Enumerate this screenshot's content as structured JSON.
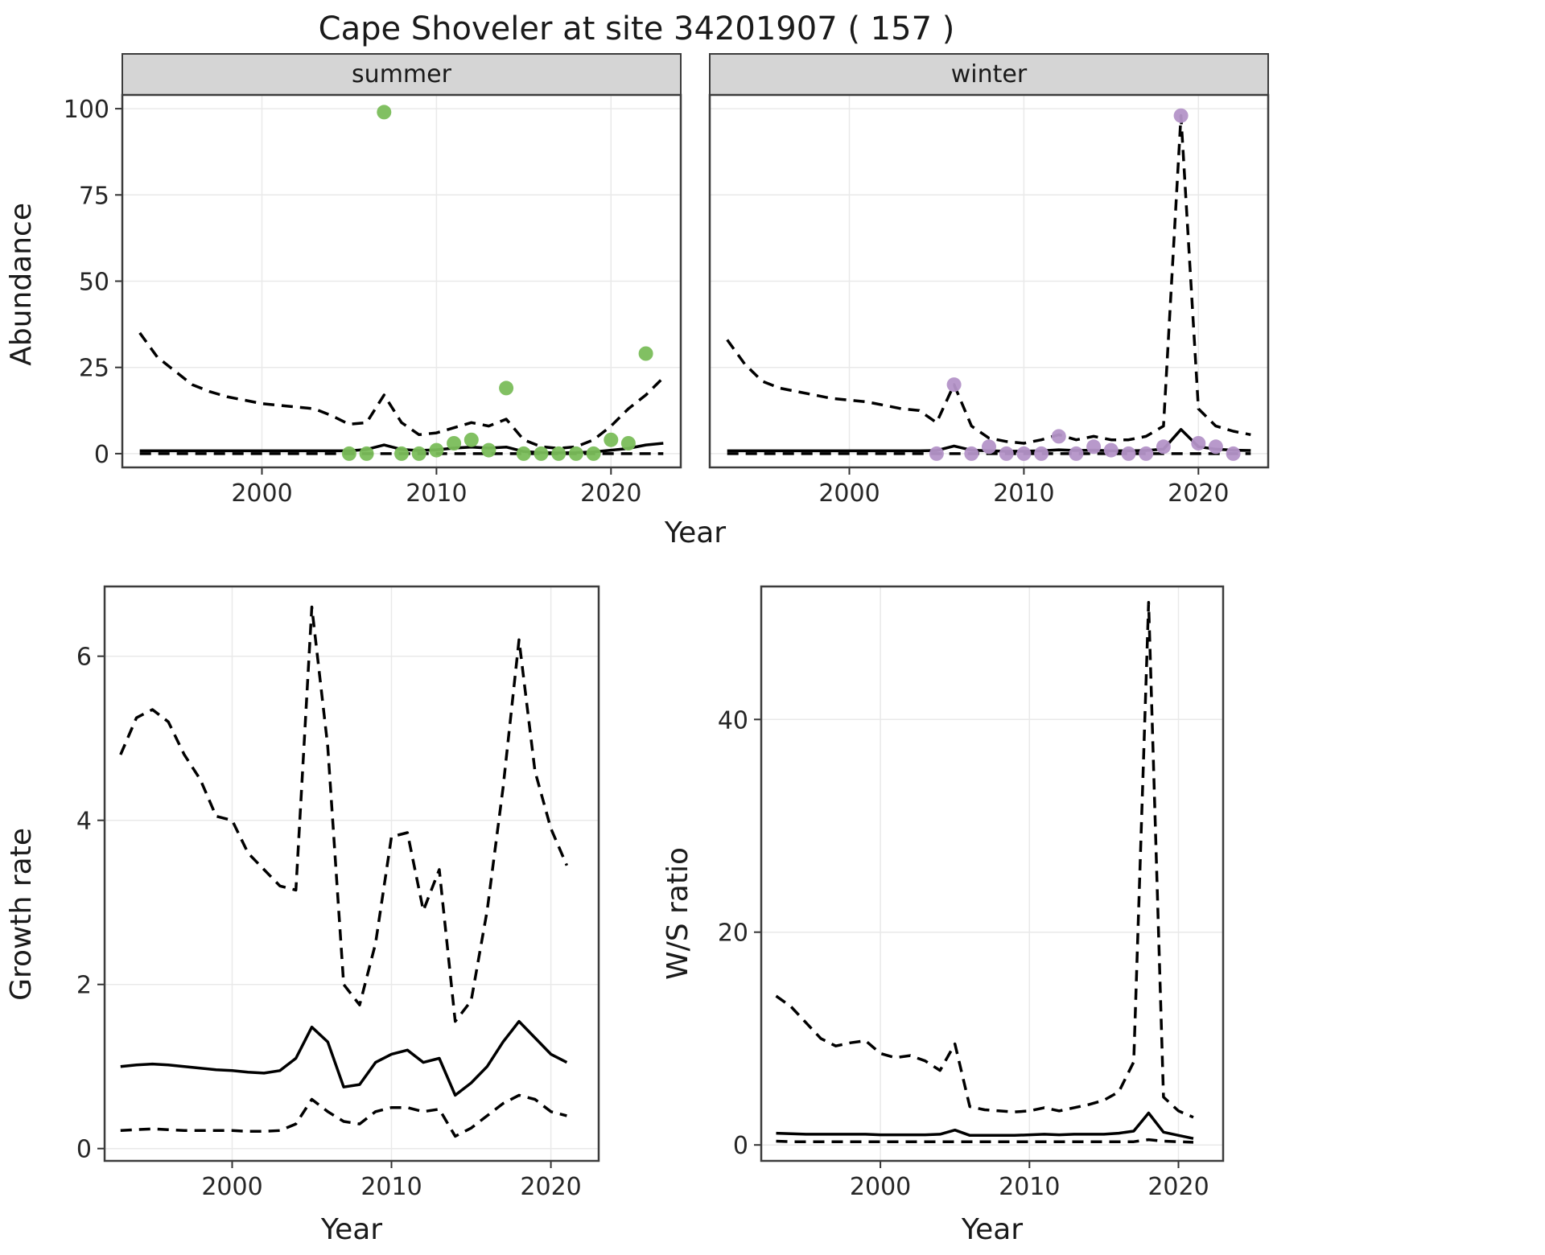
{
  "title": "Cape Shoveler at site 34201907 ( 157 )",
  "colors": {
    "summer_points": "#7abd5a",
    "winter_points": "#b494c8",
    "line": "#000000",
    "strip_bg": "#d5d5d5",
    "grid": "#e9e9e9",
    "panel_border": "#3c3c3c"
  },
  "chart_data": [
    {
      "id": "abundance_summer",
      "type": "line",
      "facet_label": "summer",
      "xlabel": "Year",
      "ylabel": "Abundance",
      "xlim": [
        1992,
        2024
      ],
      "ylim": [
        -4,
        104
      ],
      "xticks": [
        2000,
        2010,
        2020
      ],
      "yticks": [
        0,
        25,
        50,
        75,
        100
      ],
      "grid": true,
      "series": [
        {
          "name": "upper-ci",
          "style": "dashed",
          "color": "#000000",
          "x": [
            1993,
            1994,
            1995,
            1996,
            1997,
            1998,
            1999,
            2000,
            2001,
            2002,
            2003,
            2004,
            2005,
            2006,
            2007,
            2008,
            2009,
            2010,
            2011,
            2012,
            2013,
            2014,
            2015,
            2016,
            2017,
            2018,
            2019,
            2020,
            2021,
            2022,
            2023
          ],
          "y": [
            35,
            28,
            24,
            20,
            18,
            16.5,
            15.5,
            14.5,
            14,
            13.5,
            13,
            11,
            8.5,
            9,
            17,
            9,
            5.5,
            6,
            7.5,
            9,
            8,
            10,
            4,
            2,
            1.5,
            2,
            4,
            8,
            13,
            17,
            22
          ]
        },
        {
          "name": "median",
          "style": "solid",
          "color": "#000000",
          "x": [
            1993,
            1994,
            1995,
            1996,
            1997,
            1998,
            1999,
            2000,
            2001,
            2002,
            2003,
            2004,
            2005,
            2006,
            2007,
            2008,
            2009,
            2010,
            2011,
            2012,
            2013,
            2014,
            2015,
            2016,
            2017,
            2018,
            2019,
            2020,
            2021,
            2022,
            2023
          ],
          "y": [
            0.8,
            0.8,
            0.8,
            0.8,
            0.8,
            0.8,
            0.8,
            0.8,
            0.8,
            0.8,
            0.8,
            0.8,
            0.8,
            1.2,
            2.5,
            1.2,
            0.9,
            1.1,
            1.6,
            1.9,
            1.6,
            1.9,
            0.6,
            0.3,
            0.2,
            0.3,
            0.5,
            1.0,
            1.5,
            2.5,
            3.0
          ]
        },
        {
          "name": "lower-ci",
          "style": "dashed",
          "color": "#000000",
          "x": [
            1993,
            1994,
            1995,
            1996,
            1997,
            1998,
            1999,
            2000,
            2001,
            2002,
            2003,
            2004,
            2005,
            2006,
            2007,
            2008,
            2009,
            2010,
            2011,
            2012,
            2013,
            2014,
            2015,
            2016,
            2017,
            2018,
            2019,
            2020,
            2021,
            2022,
            2023
          ],
          "y": [
            0,
            0,
            0,
            0,
            0,
            0,
            0,
            0,
            0,
            0,
            0,
            0,
            0,
            0,
            0,
            0,
            0,
            0,
            0,
            0,
            0,
            0,
            0,
            0,
            0,
            0,
            0,
            0,
            0,
            0,
            0
          ]
        },
        {
          "name": "observed-counts",
          "style": "points",
          "color": "#7abd5a",
          "x": [
            2005,
            2006,
            2007,
            2008,
            2009,
            2010,
            2011,
            2012,
            2013,
            2014,
            2015,
            2016,
            2017,
            2018,
            2019,
            2020,
            2021,
            2022
          ],
          "y": [
            0,
            0,
            99,
            0,
            0,
            1,
            3,
            4,
            1,
            19,
            0,
            0,
            0,
            0,
            0,
            4,
            3,
            29
          ]
        }
      ]
    },
    {
      "id": "abundance_winter",
      "type": "line",
      "facet_label": "winter",
      "xlabel": "Year",
      "ylabel": "Abundance",
      "xlim": [
        1992,
        2024
      ],
      "ylim": [
        -4,
        104
      ],
      "xticks": [
        2000,
        2010,
        2020
      ],
      "yticks": [
        0,
        25,
        50,
        75,
        100
      ],
      "grid": true,
      "series": [
        {
          "name": "upper-ci",
          "style": "dashed",
          "color": "#000000",
          "x": [
            1993,
            1994,
            1995,
            1996,
            1997,
            1998,
            1999,
            2000,
            2001,
            2002,
            2003,
            2004,
            2005,
            2006,
            2007,
            2008,
            2009,
            2010,
            2011,
            2012,
            2013,
            2014,
            2015,
            2016,
            2017,
            2018,
            2019,
            2020,
            2021,
            2022,
            2023
          ],
          "y": [
            33,
            26,
            21,
            19,
            18,
            17,
            16,
            15.5,
            15,
            14,
            13,
            12.5,
            9,
            20,
            8,
            4.5,
            3.5,
            3,
            4,
            5.5,
            4,
            5,
            4,
            4,
            5,
            8,
            98,
            13,
            8,
            6.5,
            5.5
          ]
        },
        {
          "name": "median",
          "style": "solid",
          "color": "#000000",
          "x": [
            1993,
            1994,
            1995,
            1996,
            1997,
            1998,
            1999,
            2000,
            2001,
            2002,
            2003,
            2004,
            2005,
            2006,
            2007,
            2008,
            2009,
            2010,
            2011,
            2012,
            2013,
            2014,
            2015,
            2016,
            2017,
            2018,
            2019,
            2020,
            2021,
            2022,
            2023
          ],
          "y": [
            0.8,
            0.8,
            0.8,
            0.8,
            0.8,
            0.8,
            0.8,
            0.8,
            0.8,
            0.8,
            0.8,
            0.8,
            0.9,
            2.2,
            1.0,
            0.8,
            0.7,
            0.7,
            0.8,
            1.1,
            0.9,
            1.0,
            0.8,
            0.8,
            0.9,
            1.3,
            7,
            2,
            1.3,
            1.0,
            0.9
          ]
        },
        {
          "name": "lower-ci",
          "style": "dashed",
          "color": "#000000",
          "x": [
            1993,
            1994,
            1995,
            1996,
            1997,
            1998,
            1999,
            2000,
            2001,
            2002,
            2003,
            2004,
            2005,
            2006,
            2007,
            2008,
            2009,
            2010,
            2011,
            2012,
            2013,
            2014,
            2015,
            2016,
            2017,
            2018,
            2019,
            2020,
            2021,
            2022,
            2023
          ],
          "y": [
            0,
            0,
            0,
            0,
            0,
            0,
            0,
            0,
            0,
            0,
            0,
            0,
            0,
            0,
            0,
            0,
            0,
            0,
            0,
            0,
            0,
            0,
            0,
            0,
            0,
            0,
            0,
            0,
            0,
            0,
            0
          ]
        },
        {
          "name": "observed-counts",
          "style": "points",
          "color": "#b494c8",
          "x": [
            2005,
            2006,
            2007,
            2008,
            2009,
            2010,
            2011,
            2012,
            2013,
            2014,
            2015,
            2016,
            2017,
            2018,
            2019,
            2020,
            2021,
            2022
          ],
          "y": [
            0,
            20,
            0,
            2,
            0,
            0,
            0,
            5,
            0,
            2,
            1,
            0,
            0,
            2,
            98,
            3,
            2,
            0
          ]
        }
      ]
    },
    {
      "id": "growth_rate",
      "type": "line",
      "facet_label": "",
      "xlabel": "Year",
      "ylabel": "Growth rate",
      "xlim": [
        1992,
        2023
      ],
      "ylim": [
        -0.15,
        6.85
      ],
      "xticks": [
        2000,
        2010,
        2020
      ],
      "yticks": [
        0,
        2,
        4,
        6
      ],
      "grid": true,
      "series": [
        {
          "name": "upper-ci",
          "style": "dashed",
          "color": "#000000",
          "x": [
            1993,
            1994,
            1995,
            1996,
            1997,
            1998,
            1999,
            2000,
            2001,
            2002,
            2003,
            2004,
            2005,
            2006,
            2007,
            2008,
            2009,
            2010,
            2011,
            2012,
            2013,
            2014,
            2015,
            2016,
            2017,
            2018,
            2019,
            2020,
            2021
          ],
          "y": [
            4.8,
            5.25,
            5.35,
            5.2,
            4.8,
            4.5,
            4.05,
            4.0,
            3.6,
            3.4,
            3.2,
            3.15,
            6.6,
            4.9,
            2.0,
            1.75,
            2.5,
            3.8,
            3.85,
            2.9,
            3.4,
            1.55,
            1.8,
            2.9,
            4.4,
            6.2,
            4.6,
            3.9,
            3.45
          ]
        },
        {
          "name": "median",
          "style": "solid",
          "color": "#000000",
          "x": [
            1993,
            1994,
            1995,
            1996,
            1997,
            1998,
            1999,
            2000,
            2001,
            2002,
            2003,
            2004,
            2005,
            2006,
            2007,
            2008,
            2009,
            2010,
            2011,
            2012,
            2013,
            2014,
            2015,
            2016,
            2017,
            2018,
            2019,
            2020,
            2021
          ],
          "y": [
            1.0,
            1.02,
            1.03,
            1.02,
            1.0,
            0.98,
            0.96,
            0.95,
            0.93,
            0.92,
            0.95,
            1.1,
            1.48,
            1.3,
            0.75,
            0.78,
            1.05,
            1.15,
            1.2,
            1.05,
            1.1,
            0.65,
            0.8,
            1.0,
            1.3,
            1.55,
            1.35,
            1.15,
            1.05
          ]
        },
        {
          "name": "lower-ci",
          "style": "dashed",
          "color": "#000000",
          "x": [
            1993,
            1994,
            1995,
            1996,
            1997,
            1998,
            1999,
            2000,
            2001,
            2002,
            2003,
            2004,
            2005,
            2006,
            2007,
            2008,
            2009,
            2010,
            2011,
            2012,
            2013,
            2014,
            2015,
            2016,
            2017,
            2018,
            2019,
            2020,
            2021
          ],
          "y": [
            0.22,
            0.23,
            0.24,
            0.23,
            0.22,
            0.22,
            0.22,
            0.22,
            0.21,
            0.21,
            0.22,
            0.3,
            0.6,
            0.45,
            0.33,
            0.3,
            0.45,
            0.5,
            0.5,
            0.45,
            0.48,
            0.15,
            0.25,
            0.4,
            0.55,
            0.65,
            0.6,
            0.45,
            0.4
          ]
        }
      ]
    },
    {
      "id": "ws_ratio",
      "type": "line",
      "facet_label": "",
      "xlabel": "Year",
      "ylabel": "W/S ratio",
      "xlim": [
        1992,
        2023
      ],
      "ylim": [
        -1.5,
        52.5
      ],
      "xticks": [
        2000,
        2010,
        2020
      ],
      "yticks": [
        0,
        20,
        40
      ],
      "grid": true,
      "series": [
        {
          "name": "upper-ci",
          "style": "dashed",
          "color": "#000000",
          "x": [
            1993,
            1994,
            1995,
            1996,
            1997,
            1998,
            1999,
            2000,
            2001,
            2002,
            2003,
            2004,
            2005,
            2006,
            2007,
            2008,
            2009,
            2010,
            2011,
            2012,
            2013,
            2014,
            2015,
            2016,
            2017,
            2018,
            2019,
            2020,
            2021
          ],
          "y": [
            14,
            13,
            11.5,
            10,
            9.3,
            9.6,
            9.8,
            8.6,
            8.2,
            8.4,
            7.9,
            7.0,
            9.5,
            3.6,
            3.3,
            3.2,
            3.1,
            3.2,
            3.5,
            3.2,
            3.5,
            3.8,
            4.2,
            5.0,
            7.8,
            51,
            4.5,
            3.2,
            2.6
          ]
        },
        {
          "name": "median",
          "style": "solid",
          "color": "#000000",
          "x": [
            1993,
            1994,
            1995,
            1996,
            1997,
            1998,
            1999,
            2000,
            2001,
            2002,
            2003,
            2004,
            2005,
            2006,
            2007,
            2008,
            2009,
            2010,
            2011,
            2012,
            2013,
            2014,
            2015,
            2016,
            2017,
            2018,
            2019,
            2020,
            2021
          ],
          "y": [
            1.1,
            1.05,
            1.0,
            1.0,
            1.0,
            1.0,
            1.0,
            0.95,
            0.95,
            0.95,
            0.95,
            1.0,
            1.4,
            0.9,
            0.9,
            0.9,
            0.9,
            0.95,
            1.0,
            0.95,
            1.0,
            1.0,
            1.0,
            1.1,
            1.3,
            3.0,
            1.2,
            0.9,
            0.6
          ]
        },
        {
          "name": "lower-ci",
          "style": "dashed",
          "color": "#000000",
          "x": [
            1993,
            1994,
            1995,
            1996,
            1997,
            1998,
            1999,
            2000,
            2001,
            2002,
            2003,
            2004,
            2005,
            2006,
            2007,
            2008,
            2009,
            2010,
            2011,
            2012,
            2013,
            2014,
            2015,
            2016,
            2017,
            2018,
            2019,
            2020,
            2021
          ],
          "y": [
            0.35,
            0.3,
            0.3,
            0.3,
            0.3,
            0.3,
            0.3,
            0.3,
            0.3,
            0.3,
            0.3,
            0.3,
            0.3,
            0.3,
            0.3,
            0.3,
            0.3,
            0.3,
            0.3,
            0.3,
            0.3,
            0.3,
            0.3,
            0.3,
            0.3,
            0.5,
            0.35,
            0.3,
            0.25
          ]
        }
      ]
    }
  ]
}
